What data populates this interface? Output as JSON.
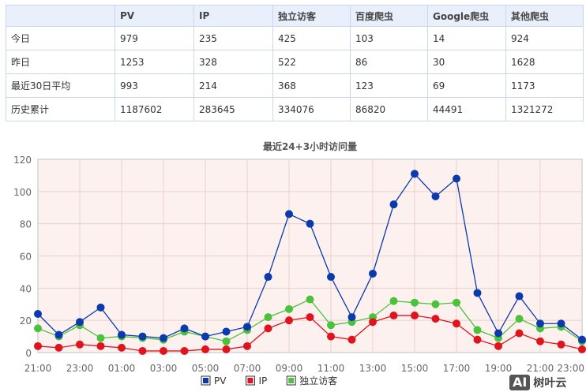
{
  "table": {
    "headers": [
      "",
      "PV",
      "IP",
      "独立访客",
      "百度爬虫",
      "Google爬虫",
      "其他爬虫"
    ],
    "rows": [
      [
        "今日",
        "979",
        "235",
        "425",
        "103",
        "14",
        "924"
      ],
      [
        "昨日",
        "1253",
        "328",
        "522",
        "86",
        "30",
        "1628"
      ],
      [
        "最近30日平均",
        "993",
        "214",
        "368",
        "123",
        "69",
        "1173"
      ],
      [
        "历史累计",
        "1187602",
        "283645",
        "334076",
        "86820",
        "44491",
        "1321272"
      ]
    ]
  },
  "watermark": {
    "text": "AI 树叶云"
  },
  "chart_data": {
    "type": "line",
    "title": "最近24+3小时访问量",
    "x": [
      "21:00",
      "22:00",
      "23:00",
      "00:00",
      "01:00",
      "02:00",
      "03:00",
      "04:00",
      "05:00",
      "06:00",
      "07:00",
      "08:00",
      "09:00",
      "10:00",
      "11:00",
      "12:00",
      "13:00",
      "14:00",
      "15:00",
      "16:00",
      "17:00",
      "18:00",
      "19:00",
      "20:00",
      "21:00",
      "22:00",
      "23:00"
    ],
    "xticks": [
      "21:00",
      "23:00",
      "01:00",
      "03:00",
      "05:00",
      "07:00",
      "09:00",
      "11:00",
      "13:00",
      "15:00",
      "17:00",
      "19:00",
      "21:00",
      "23:00"
    ],
    "yticks": [
      0,
      20,
      40,
      60,
      80,
      100,
      120
    ],
    "ylim": [
      0,
      120
    ],
    "grid": true,
    "legend": "bottom",
    "series": [
      {
        "name": "PV",
        "color": "#0a3aae",
        "values": [
          24,
          11,
          19,
          28,
          11,
          10,
          9,
          15,
          10,
          13,
          16,
          47,
          86,
          80,
          47,
          22,
          49,
          92,
          111,
          97,
          108,
          37,
          12,
          35,
          18,
          18,
          8
        ]
      },
      {
        "name": "IP",
        "color": "#e0141c",
        "values": [
          4,
          3,
          5,
          4,
          3,
          1,
          1,
          1,
          2,
          2,
          4,
          15,
          20,
          22,
          10,
          8,
          19,
          23,
          23,
          21,
          18,
          8,
          4,
          12,
          7,
          5,
          2
        ]
      },
      {
        "name": "独立访客",
        "color": "#4cc23c",
        "values": [
          15,
          10,
          17,
          9,
          10,
          9,
          8,
          13,
          10,
          7,
          14,
          22,
          27,
          33,
          17,
          19,
          22,
          32,
          31,
          30,
          31,
          14,
          9,
          21,
          15,
          16,
          7
        ]
      }
    ]
  }
}
